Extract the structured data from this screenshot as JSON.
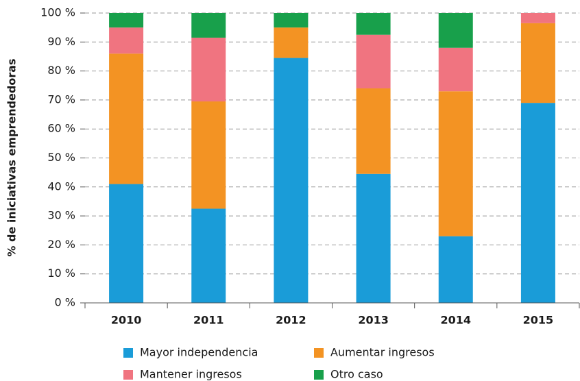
{
  "chart_data": {
    "type": "stacked_bar",
    "ylabel": "% de iniciativas emprendedoras",
    "categories": [
      "2010",
      "2011",
      "2012",
      "2013",
      "2014",
      "2015"
    ],
    "series": [
      {
        "name": "Mayor independencia",
        "color": "#1a9cd8",
        "values": [
          41,
          32.5,
          84.5,
          44.5,
          23,
          69
        ]
      },
      {
        "name": "Aumentar ingresos",
        "color": "#f39323",
        "values": [
          45,
          37,
          10.5,
          29.5,
          50,
          27.5
        ]
      },
      {
        "name": "Mantener ingresos",
        "color": "#f07480",
        "values": [
          9,
          22,
          0,
          18.5,
          15,
          3.5
        ]
      },
      {
        "name": "Otro caso",
        "color": "#18a04b",
        "values": [
          5,
          8.5,
          5,
          7.5,
          12,
          0
        ]
      }
    ],
    "ylim": [
      0,
      100
    ],
    "yticks": [
      {
        "value": 0,
        "label": "0 %"
      },
      {
        "value": 10,
        "label": "10 %"
      },
      {
        "value": 20,
        "label": "20 %"
      },
      {
        "value": 30,
        "label": "30 %"
      },
      {
        "value": 40,
        "label": "40 %"
      },
      {
        "value": 50,
        "label": "50 %"
      },
      {
        "value": 60,
        "label": "60 %"
      },
      {
        "value": 70,
        "label": "70 %"
      },
      {
        "value": 80,
        "label": "80 %"
      },
      {
        "value": 90,
        "label": "90 %"
      },
      {
        "value": 100,
        "label": "100 %"
      }
    ],
    "grid": true
  }
}
